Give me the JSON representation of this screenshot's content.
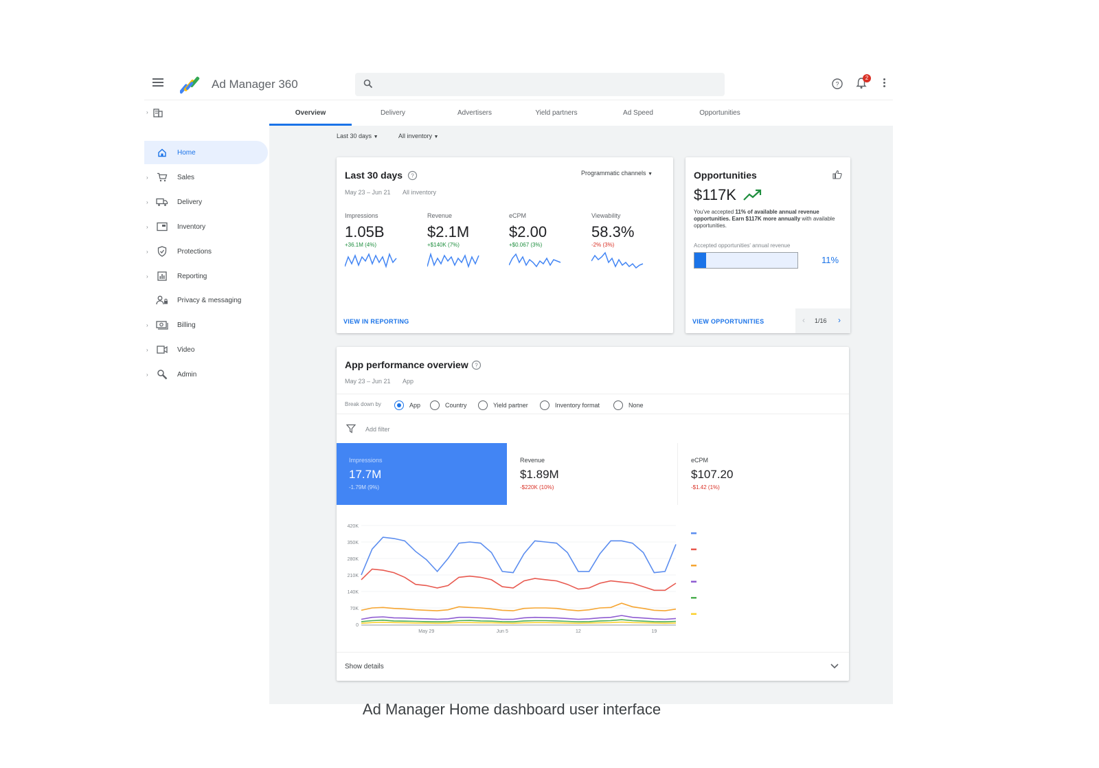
{
  "header": {
    "app_title": "Ad Manager 360",
    "search_placeholder": "",
    "notification_count": "2",
    "icons": [
      "menu-icon",
      "ad-manager-logo",
      "search-icon",
      "help-icon",
      "bell-icon",
      "more-vert-icon"
    ]
  },
  "sidebar": {
    "items": [
      {
        "label": "Home",
        "icon": "home-icon",
        "active": true
      },
      {
        "label": "Sales",
        "icon": "cart-icon"
      },
      {
        "label": "Delivery",
        "icon": "truck-icon"
      },
      {
        "label": "Inventory",
        "icon": "inventory-icon"
      },
      {
        "label": "Protections",
        "icon": "shield-icon"
      },
      {
        "label": "Reporting",
        "icon": "reporting-icon"
      },
      {
        "label": "Privacy & messaging",
        "icon": "privacy-icon"
      },
      {
        "label": "Billing",
        "icon": "billing-icon"
      },
      {
        "label": "Video",
        "icon": "video-icon"
      },
      {
        "label": "Admin",
        "icon": "admin-icon"
      }
    ]
  },
  "tabs": [
    "Overview",
    "Delivery",
    "Advertisers",
    "Yield partners",
    "Ad Speed",
    "Opportunities"
  ],
  "filters": {
    "date": "Last 30 days",
    "inventory": "All inventory"
  },
  "summary": {
    "title": "Last 30 days",
    "date_range": "May 23 – Jun 21",
    "scope": "All inventory",
    "channel_select": "Programmatic channels",
    "metrics": [
      {
        "label": "Impressions",
        "value": "1.05B",
        "delta": "+36.1M (4%)",
        "trend": "pos"
      },
      {
        "label": "Revenue",
        "value": "$2.1M",
        "delta": "+$140K (7%)",
        "trend": "pos"
      },
      {
        "label": "eCPM",
        "value": "$2.00",
        "delta": "+$0.067 (3%)",
        "trend": "pos"
      },
      {
        "label": "Viewability",
        "value": "58.3%",
        "delta": "-2% (3%)",
        "trend": "neg"
      }
    ],
    "link": "VIEW IN REPORTING"
  },
  "opportunities": {
    "title": "Opportunities",
    "value": "$117K",
    "text_a": "You've accepted ",
    "text_b": "11% of available annual revenue opportunities. Earn $117K more annually",
    "text_c": " with available opportunities.",
    "progress_label": "Accepted opportunities' annual revenue",
    "progress_percent": 11,
    "progress_text": "11%",
    "link": "VIEW OPPORTUNITIES",
    "pager": "1/16"
  },
  "app_performance": {
    "title": "App performance overview",
    "date_range": "May 23 – Jun 21",
    "scope": "App",
    "breakdown_label": "Break down by",
    "breakdown_options": [
      {
        "label": "App",
        "selected": true
      },
      {
        "label": "Country",
        "selected": false
      },
      {
        "label": "Yield partner",
        "selected": false
      },
      {
        "label": "Inventory format",
        "selected": false
      },
      {
        "label": "None",
        "selected": false
      }
    ],
    "add_filter": "Add filter",
    "tiles": [
      {
        "label": "Impressions",
        "value": "17.7M",
        "delta": "-1.79M (9%)",
        "selected": true
      },
      {
        "label": "Revenue",
        "value": "$1.89M",
        "delta": "-$220K (10%)",
        "selected": false
      },
      {
        "label": "eCPM",
        "value": "$107.20",
        "delta": "-$1.42 (1%)",
        "selected": false
      }
    ],
    "show_details": "Show details"
  },
  "chart_data": {
    "type": "line",
    "title": "",
    "xlabel": "",
    "ylabel": "",
    "y_ticks": [
      "420K",
      "350K",
      "280K",
      "210K",
      "140K",
      "70K",
      "0"
    ],
    "ylim": [
      0,
      420000
    ],
    "x_tick_labels": [
      "May 29",
      "Jun 5",
      "12",
      "19"
    ],
    "x_tick_index": [
      6,
      13,
      20,
      27
    ],
    "legend_colors": [
      "#5b8def",
      "#e8594f",
      "#f6a531",
      "#8e5bd1",
      "#4caf50",
      "#fbd12f"
    ],
    "series": [
      {
        "color": "#5b8def",
        "values": [
          210000,
          320000,
          370000,
          365000,
          355000,
          310000,
          275000,
          225000,
          280000,
          345000,
          350000,
          345000,
          305000,
          225000,
          220000,
          300000,
          355000,
          350000,
          345000,
          305000,
          225000,
          225000,
          300000,
          355000,
          355000,
          345000,
          305000,
          220000,
          225000,
          340000
        ]
      },
      {
        "color": "#e8594f",
        "values": [
          190000,
          235000,
          230000,
          220000,
          200000,
          170000,
          165000,
          155000,
          165000,
          200000,
          205000,
          200000,
          190000,
          160000,
          155000,
          185000,
          195000,
          190000,
          185000,
          170000,
          150000,
          155000,
          175000,
          185000,
          180000,
          175000,
          160000,
          145000,
          145000,
          175000
        ]
      },
      {
        "color": "#f6a531",
        "values": [
          60000,
          70000,
          72000,
          68000,
          66000,
          62000,
          60000,
          58000,
          62000,
          75000,
          72000,
          70000,
          66000,
          60000,
          58000,
          68000,
          70000,
          70000,
          68000,
          62000,
          58000,
          62000,
          70000,
          72000,
          90000,
          75000,
          68000,
          60000,
          58000,
          65000
        ]
      },
      {
        "color": "#8e5bd1",
        "values": [
          22000,
          30000,
          32000,
          28000,
          27000,
          25000,
          24000,
          22000,
          24000,
          30000,
          30000,
          28000,
          26000,
          22000,
          22000,
          28000,
          30000,
          29000,
          28000,
          25000,
          22000,
          24000,
          28000,
          30000,
          38000,
          30000,
          27000,
          24000,
          22000,
          25000
        ]
      },
      {
        "color": "#4caf50",
        "values": [
          12000,
          16000,
          18000,
          15000,
          14000,
          13000,
          12000,
          11000,
          12000,
          16000,
          17000,
          15000,
          14000,
          12000,
          11000,
          15000,
          16000,
          16000,
          15000,
          13000,
          11000,
          12000,
          15000,
          16000,
          20000,
          16000,
          14000,
          12000,
          11000,
          13000
        ]
      },
      {
        "color": "#fbd12f",
        "values": [
          5000,
          8000,
          9000,
          8000,
          7000,
          6000,
          6000,
          5000,
          6000,
          8000,
          8000,
          7000,
          7000,
          6000,
          5000,
          7000,
          8000,
          8000,
          7000,
          6000,
          5000,
          6000,
          7000,
          8000,
          10000,
          8000,
          7000,
          6000,
          5000,
          6000
        ]
      }
    ]
  },
  "caption": "Ad Manager Home dashboard user interface"
}
